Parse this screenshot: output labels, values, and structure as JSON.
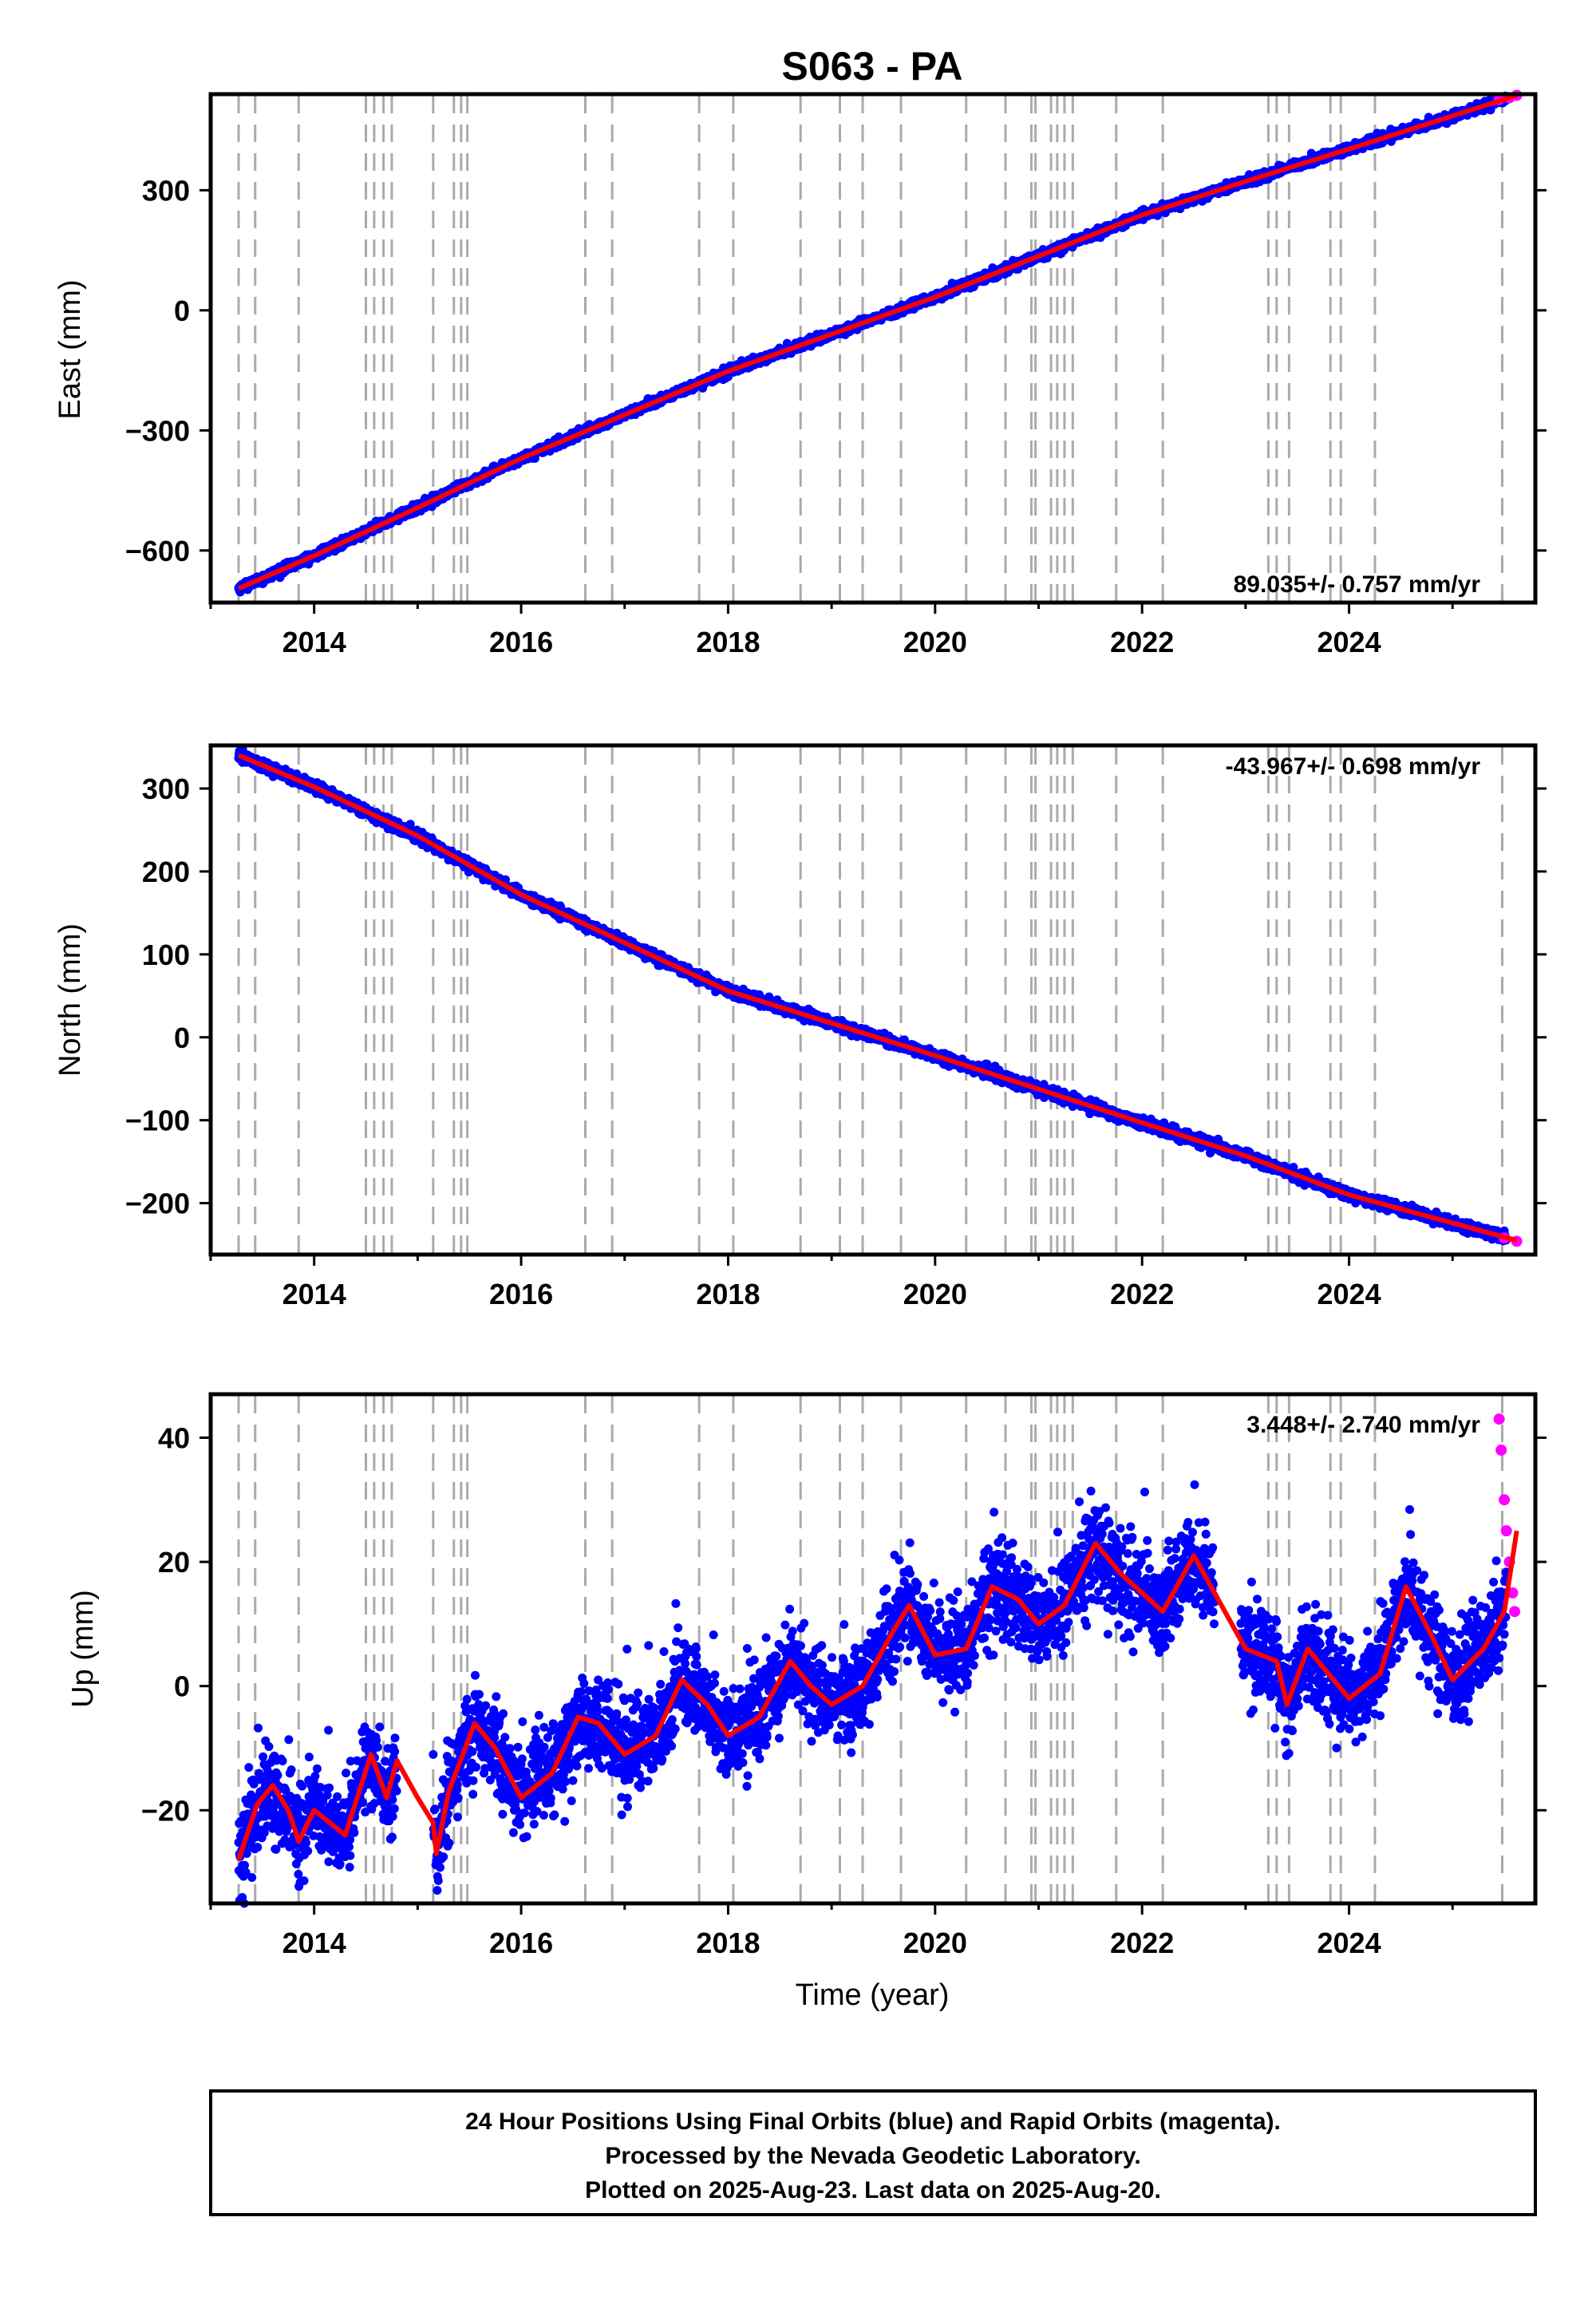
{
  "title": "S063 - PA",
  "colors": {
    "final": "#0000ff",
    "rapid": "#ff00ff",
    "model": "#ff0000",
    "breaks": "#aaaaaa",
    "frame": "#000000"
  },
  "chart_data": [
    {
      "type": "scatter",
      "ylabel": "East (mm)",
      "rate": "89.035+/- 0.757 mm/yr",
      "xlim": [
        2013.0,
        2025.8
      ],
      "ylim": [
        -730,
        540
      ],
      "yticks": [
        300,
        0,
        -300,
        -600
      ],
      "ytick_labels": [
        "300",
        "0",
        "−300",
        "−600"
      ],
      "xticks": [
        2014,
        2016,
        2018,
        2020,
        2022,
        2024
      ],
      "xtick_labels": [
        "2014",
        "2016",
        "2018",
        "2020",
        "2022",
        "2024"
      ],
      "trend": [
        [
          2013.27,
          -695
        ],
        [
          2014.0,
          -613
        ],
        [
          2015.0,
          -493
        ],
        [
          2016.0,
          -370
        ],
        [
          2018.0,
          -152
        ],
        [
          2020.0,
          33
        ],
        [
          2022.0,
          238
        ],
        [
          2023.0,
          322
        ],
        [
          2024.0,
          403
        ],
        [
          2025.62,
          537
        ]
      ],
      "noise_mm": 5,
      "rapid": [
        [
          2025.45,
          527
        ],
        [
          2025.55,
          531
        ],
        [
          2025.62,
          537
        ]
      ]
    },
    {
      "type": "scatter",
      "ylabel": "North (mm)",
      "rate": "-43.967+/- 0.698 mm/yr",
      "xlim": [
        2013.0,
        2025.8
      ],
      "ylim": [
        -262,
        352
      ],
      "yticks": [
        300,
        200,
        100,
        0,
        -100,
        -200
      ],
      "ytick_labels": [
        "300",
        "200",
        "100",
        "0",
        "−100",
        "−200"
      ],
      "xticks": [
        2014,
        2016,
        2018,
        2020,
        2022,
        2024
      ],
      "xtick_labels": [
        "2014",
        "2016",
        "2018",
        "2020",
        "2022",
        "2024"
      ],
      "trend": [
        [
          2013.27,
          340
        ],
        [
          2014.0,
          302
        ],
        [
          2015.0,
          243
        ],
        [
          2016.0,
          172
        ],
        [
          2018.0,
          56
        ],
        [
          2020.0,
          -22
        ],
        [
          2022.0,
          -103
        ],
        [
          2023.0,
          -143
        ],
        [
          2024.0,
          -190
        ],
        [
          2025.62,
          -245
        ]
      ],
      "noise_mm": 3,
      "rapid": [
        [
          2025.5,
          -242
        ],
        [
          2025.62,
          -246
        ]
      ]
    },
    {
      "type": "scatter",
      "ylabel": "Up (mm)",
      "xlabel": "Time (year)",
      "rate": "3.448+/- 2.740 mm/yr",
      "xlim": [
        2013.0,
        2025.8
      ],
      "ylim": [
        -35,
        47
      ],
      "yticks": [
        40,
        20,
        0,
        -20
      ],
      "ytick_labels": [
        "40",
        "20",
        "0",
        "−20"
      ],
      "xticks": [
        2014,
        2016,
        2018,
        2020,
        2022,
        2024
      ],
      "xtick_labels": [
        "2014",
        "2016",
        "2018",
        "2020",
        "2022",
        "2024"
      ],
      "trend": [
        [
          2013.27,
          -28
        ],
        [
          2013.45,
          -19
        ],
        [
          2013.6,
          -16
        ],
        [
          2013.75,
          -20
        ],
        [
          2013.85,
          -25
        ],
        [
          2014.0,
          -20
        ],
        [
          2014.3,
          -24
        ],
        [
          2014.55,
          -11
        ],
        [
          2014.7,
          -18
        ],
        [
          2014.8,
          -12
        ],
        [
          2015.0,
          -18
        ],
        [
          2015.15,
          -22
        ],
        [
          2015.18,
          -27
        ],
        [
          2015.3,
          -17
        ],
        [
          2015.55,
          -6
        ],
        [
          2015.75,
          -10
        ],
        [
          2016.0,
          -18
        ],
        [
          2016.3,
          -14
        ],
        [
          2016.55,
          -5
        ],
        [
          2016.75,
          -6
        ],
        [
          2017.0,
          -11
        ],
        [
          2017.3,
          -8
        ],
        [
          2017.55,
          1
        ],
        [
          2017.8,
          -3
        ],
        [
          2018.0,
          -8
        ],
        [
          2018.3,
          -5
        ],
        [
          2018.6,
          4
        ],
        [
          2018.8,
          0
        ],
        [
          2019.0,
          -3
        ],
        [
          2019.3,
          0
        ],
        [
          2019.6,
          9
        ],
        [
          2019.75,
          13
        ],
        [
          2020.0,
          5
        ],
        [
          2020.3,
          6
        ],
        [
          2020.55,
          16
        ],
        [
          2020.8,
          14
        ],
        [
          2021.0,
          10
        ],
        [
          2021.25,
          13
        ],
        [
          2021.55,
          23
        ],
        [
          2021.8,
          18
        ],
        [
          2022.0,
          15
        ],
        [
          2022.2,
          12
        ],
        [
          2022.5,
          21
        ],
        [
          2022.7,
          15
        ],
        [
          2023.0,
          6
        ],
        [
          2023.3,
          4
        ],
        [
          2023.4,
          -3
        ],
        [
          2023.6,
          6
        ],
        [
          2023.8,
          2
        ],
        [
          2024.0,
          -2
        ],
        [
          2024.3,
          2
        ],
        [
          2024.55,
          16
        ],
        [
          2024.8,
          8
        ],
        [
          2025.0,
          1
        ],
        [
          2025.3,
          6
        ],
        [
          2025.5,
          12
        ],
        [
          2025.62,
          25
        ]
      ],
      "noise_mm": 3.5,
      "gaps": [
        [
          2014.8,
          2015.15
        ],
        [
          2022.7,
          2022.95
        ]
      ],
      "rapid": [
        [
          2025.45,
          43
        ],
        [
          2025.47,
          38
        ],
        [
          2025.5,
          30
        ],
        [
          2025.52,
          25
        ],
        [
          2025.55,
          20
        ],
        [
          2025.58,
          15
        ],
        [
          2025.6,
          12
        ]
      ]
    }
  ],
  "equipment_changes": [
    2013.27,
    2013.43,
    2013.85,
    2014.5,
    2014.58,
    2014.67,
    2014.75,
    2015.15,
    2015.35,
    2015.42,
    2015.48,
    2016.62,
    2016.88,
    2017.72,
    2018.05,
    2018.7,
    2019.08,
    2019.3,
    2019.67,
    2020.3,
    2020.68,
    2020.93,
    2020.97,
    2021.12,
    2021.18,
    2021.25,
    2021.33,
    2021.75,
    2022.2,
    2023.22,
    2023.3,
    2023.42,
    2023.82,
    2023.92,
    2024.25,
    2025.48
  ],
  "footer": {
    "line1": "24 Hour Positions Using Final Orbits (blue) and Rapid Orbits (magenta).",
    "line2": "Processed by the Nevada Geodetic Laboratory.",
    "line3": "Plotted on 2025-Aug-23. Last data on 2025-Aug-20."
  }
}
